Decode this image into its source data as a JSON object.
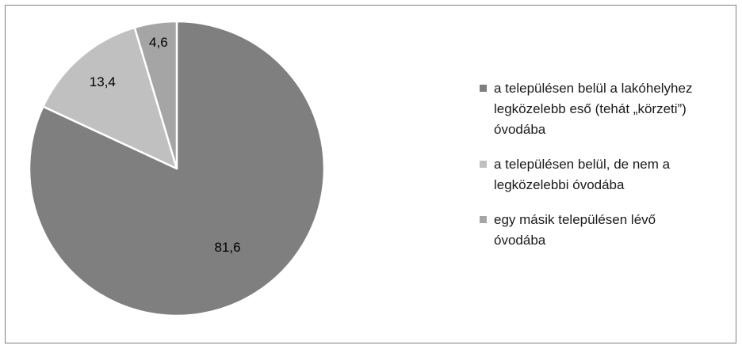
{
  "chart_data": {
    "type": "pie",
    "values": [
      81.6,
      13.4,
      4.6
    ],
    "data_labels": [
      "81,6",
      "13,4",
      "4,6"
    ],
    "categories": [
      "a településen belül a lakóhelyhez legközelebb eső (tehát „körzeti”) óvodába",
      "a településen belül, de nem a legközelebbi óvodába",
      "egy másik településen lévő óvodába"
    ],
    "legend_lines": [
      [
        "a településen belül a lakóhelyhez",
        "legközelebb eső (tehát „körzeti”)",
        "óvodába"
      ],
      [
        "a településen belül, de nem a",
        "legközelebbi óvodába"
      ],
      [
        "egy másik településen lévő",
        "óvodába"
      ]
    ],
    "colors": [
      "#7f7f7f",
      "#c0c0c0",
      "#a5a5a5"
    ],
    "start_angle_deg": 0,
    "direction": "clockwise",
    "legend_position": "right"
  }
}
